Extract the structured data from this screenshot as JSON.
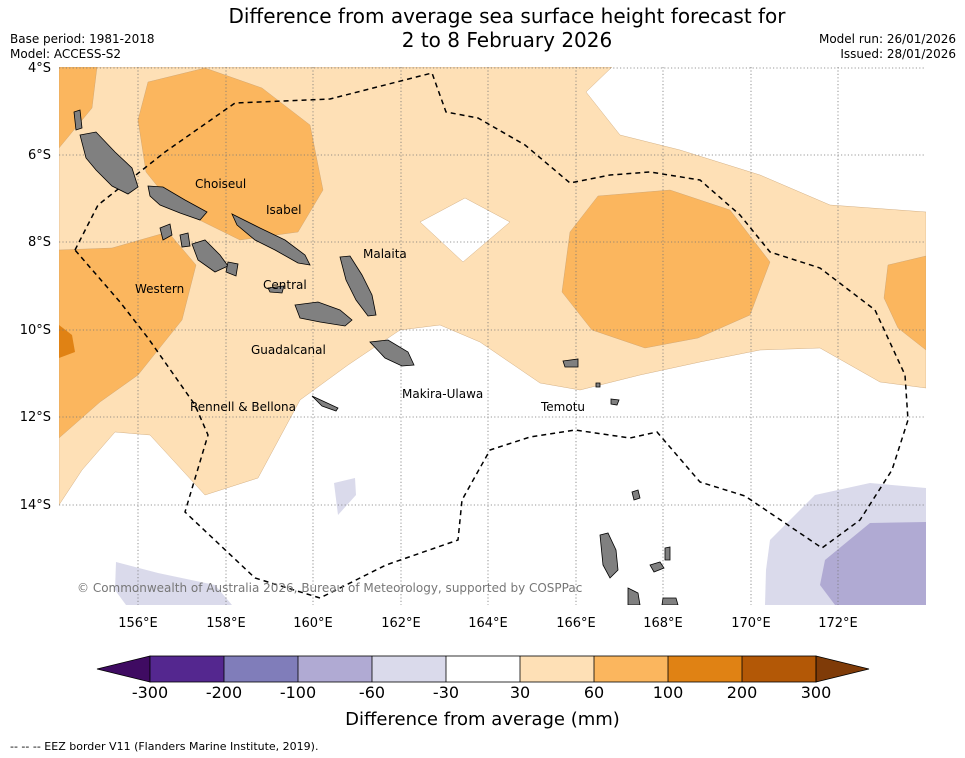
{
  "header": {
    "title_line1": "Difference from average sea surface height forecast for",
    "title_line2": "2 to 8 February 2026",
    "base_period": "Base period: 1981-2018",
    "model": "Model: ACCESS-S2",
    "model_run": "Model run: 26/01/2026",
    "issued": "Issued: 28/01/2026"
  },
  "map": {
    "lat_labels": [
      "4°S",
      "6°S",
      "8°S",
      "10°S",
      "12°S",
      "14°S"
    ],
    "lon_labels": [
      "156°E",
      "158°E",
      "160°E",
      "162°E",
      "164°E",
      "166°E",
      "168°E",
      "170°E",
      "172°E"
    ],
    "places": {
      "choiseul": "Choiseul",
      "isabel": "Isabel",
      "malaita": "Malaita",
      "western": "Western",
      "central": "Central",
      "guadalcanal": "Guadalcanal",
      "makira": "Makira-Ulawa",
      "temotu": "Temotu",
      "rennell": "Rennell & Bellona"
    },
    "copyright": "© Commonwealth of Australia 2026, Bureau of Meteorology, supported by COSPPac"
  },
  "colorbar": {
    "ticks": [
      "-300",
      "-200",
      "-100",
      "-60",
      "-30",
      "30",
      "60",
      "100",
      "200",
      "300"
    ],
    "colors": [
      "#3f0b62",
      "#54278f",
      "#807dba",
      "#b0aad3",
      "#dadaeb",
      "#ffffff",
      "#fee0b6",
      "#fbb65e",
      "#e08214",
      "#b35806",
      "#7f3b08"
    ],
    "title": "Difference from average (mm)"
  },
  "footnote": "--  --  -- EEZ border V11 (Flanders Marine Institute, 2019)."
}
